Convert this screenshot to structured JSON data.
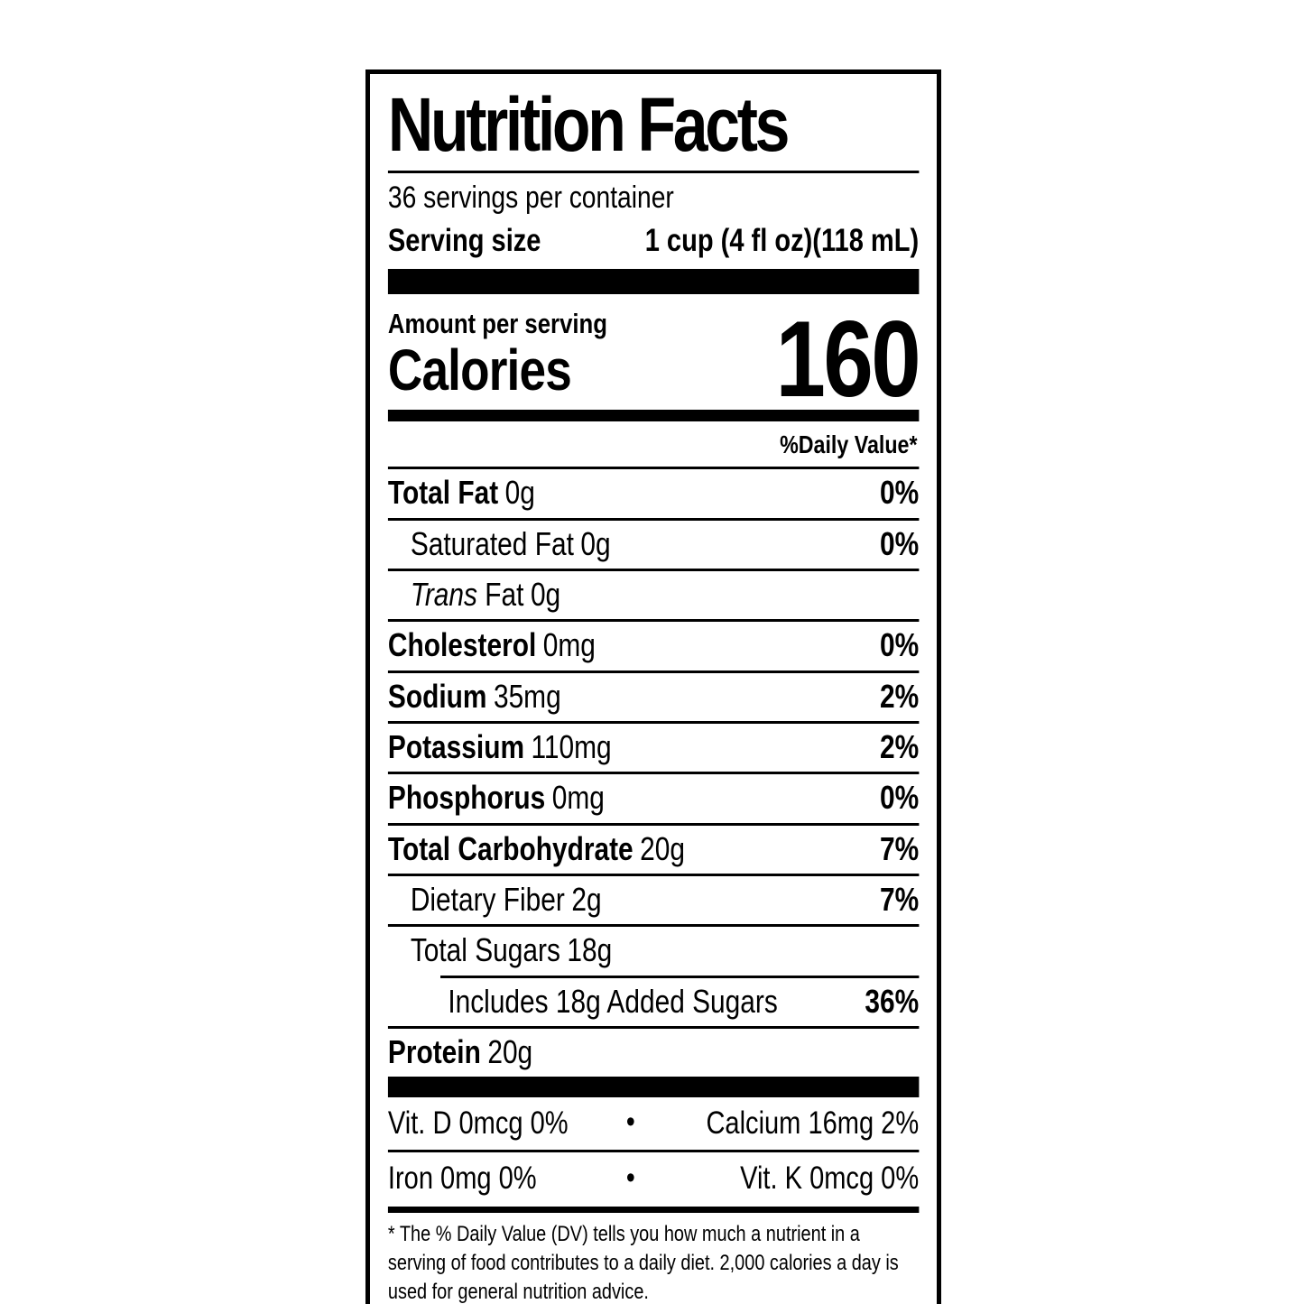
{
  "colors": {
    "ink": "#000000",
    "paper": "#ffffff"
  },
  "nutrition_label": {
    "title": "Nutrition Facts",
    "servings_per_container": "36 servings per container",
    "serving_size": {
      "label": "Serving size",
      "value": "1 cup (4 fl oz)(118 mL)"
    },
    "amount_per_serving": "Amount per serving",
    "calories": {
      "label": "Calories",
      "value": "160"
    },
    "daily_value_header": "%Daily Value*",
    "nutrients": [
      {
        "name": "Total Fat",
        "amount": "0g",
        "dv": "0%"
      },
      {
        "name": "Saturated Fat",
        "amount": "0g",
        "dv": "0%"
      },
      {
        "name_italic": "Trans",
        "name": "Fat",
        "amount": "0g",
        "dv": ""
      },
      {
        "name": "Cholesterol",
        "amount": "0mg",
        "dv": "0%"
      },
      {
        "name": "Sodium",
        "amount": "35mg",
        "dv": "2%"
      },
      {
        "name": "Potassium",
        "amount": "110mg",
        "dv": "2%"
      },
      {
        "name": "Phosphorus",
        "amount": "0mg",
        "dv": "0%"
      },
      {
        "name": "Total Carbohydrate",
        "amount": "20g",
        "dv": "7%"
      },
      {
        "name": "Dietary Fiber",
        "amount": "2g",
        "dv": "7%"
      },
      {
        "name": "Total Sugars",
        "amount": "18g",
        "dv": ""
      },
      {
        "name": "Includes 18g Added Sugars",
        "amount": "",
        "dv": "36%"
      },
      {
        "name": "Protein",
        "amount": "20g",
        "dv": ""
      }
    ],
    "micronutrients": {
      "bullet": "•",
      "rows": [
        {
          "left": "Vit. D 0mcg 0%",
          "right": "Calcium 16mg 2%"
        },
        {
          "left": "Iron 0mg 0%",
          "right": "Vit. K 0mcg 0%"
        }
      ]
    },
    "footnote": "* The % Daily Value (DV) tells you how much a nutrient in a serving of food contributes to a daily diet. 2,000 calories a day is used for general nutrition advice."
  }
}
